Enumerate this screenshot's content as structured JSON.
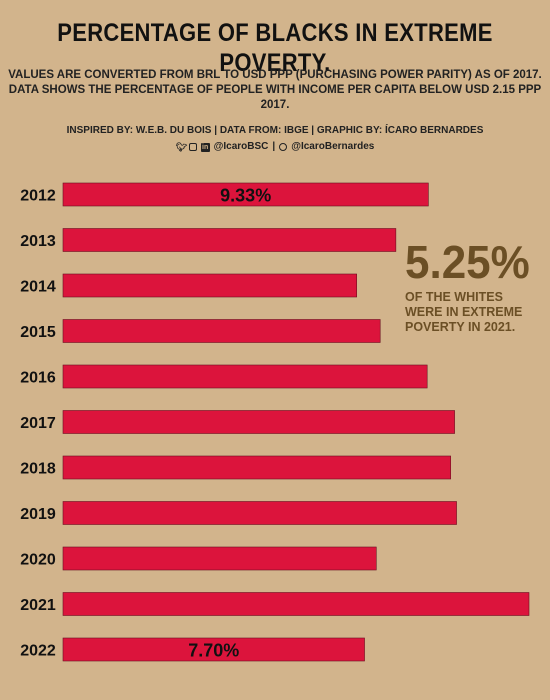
{
  "header": {
    "title": "PERCENTAGE OF BLACKS IN EXTREME POVERTY.",
    "subtitle_line1": "VALUES ARE CONVERTED FROM BRL TO USD PPP (PURCHASING POWER PARITY) AS OF 2017.",
    "subtitle_line2": "DATA SHOWS THE PERCENTAGE OF PEOPLE WITH INCOME PER CAPITA BELOW USD 2.15 PPP 2017.",
    "credits": "INSPIRED BY: W.E.B. DU BOIS | DATA FROM: IBGE | GRAPHIC BY: ÍCARO BERNARDES",
    "social_handle": "@IcaroBSC",
    "social_separator": "|",
    "github_handle": "@IcaroBernardes",
    "icons": [
      "twitter-icon",
      "instagram-icon",
      "linkedin-icon",
      "github-icon"
    ]
  },
  "callout": {
    "value": "5.25%",
    "text_line1": "OF THE WHITES",
    "text_line2": "WERE IN EXTREME",
    "text_line3": "POVERTY IN 2021."
  },
  "colors": {
    "background": "#d2b48c",
    "bar": "#dc143c",
    "callout": "#6b4f25"
  },
  "chart_data": {
    "type": "bar",
    "orientation": "horizontal",
    "categories": [
      "2012",
      "2013",
      "2014",
      "2015",
      "2016",
      "2017",
      "2018",
      "2019",
      "2020",
      "2021",
      "2022"
    ],
    "values": [
      9.33,
      8.5,
      7.5,
      8.1,
      9.3,
      10.0,
      9.9,
      10.05,
      8.0,
      11.9,
      7.7
    ],
    "value_labels": [
      "9.33%",
      "",
      "",
      "",
      "",
      "",
      "",
      "",
      "",
      "",
      "7.70%"
    ],
    "grid": false,
    "legend": "none"
  }
}
